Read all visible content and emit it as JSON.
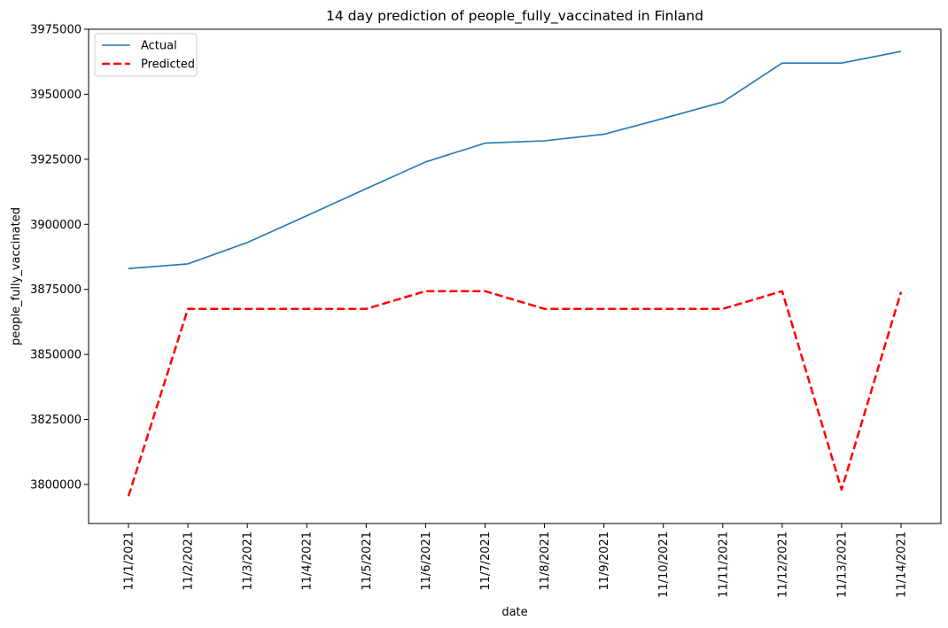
{
  "chart_data": {
    "type": "line",
    "title": "14 day prediction of people_fully_vaccinated in Finland",
    "xlabel": "date",
    "ylabel": "people_fully_vaccinated",
    "categories": [
      "11/1/2021",
      "11/2/2021",
      "11/3/2021",
      "11/4/2021",
      "11/5/2021",
      "11/6/2021",
      "11/7/2021",
      "11/8/2021",
      "11/9/2021",
      "11/10/2021",
      "11/11/2021",
      "11/12/2021",
      "11/13/2021",
      "11/14/2021"
    ],
    "ylim": [
      3785000,
      3975000
    ],
    "yticks": [
      3800000,
      3825000,
      3850000,
      3875000,
      3900000,
      3925000,
      3950000,
      3975000
    ],
    "legend_position": "top-left",
    "grid": false,
    "series": [
      {
        "name": "Actual",
        "color": "#1f77b4",
        "style": "solid",
        "values": [
          3883000,
          3884800,
          3893000,
          3903300,
          3913700,
          3924000,
          3931200,
          3932100,
          3934600,
          3940700,
          3947000,
          3962000,
          3962000,
          3966500
        ]
      },
      {
        "name": "Predicted",
        "color": "#ff0000",
        "style": "dashed",
        "values": [
          3795500,
          3867500,
          3867500,
          3867500,
          3867500,
          3874300,
          3874300,
          3867500,
          3867500,
          3867500,
          3867500,
          3874300,
          3798000,
          3874000
        ]
      }
    ]
  }
}
